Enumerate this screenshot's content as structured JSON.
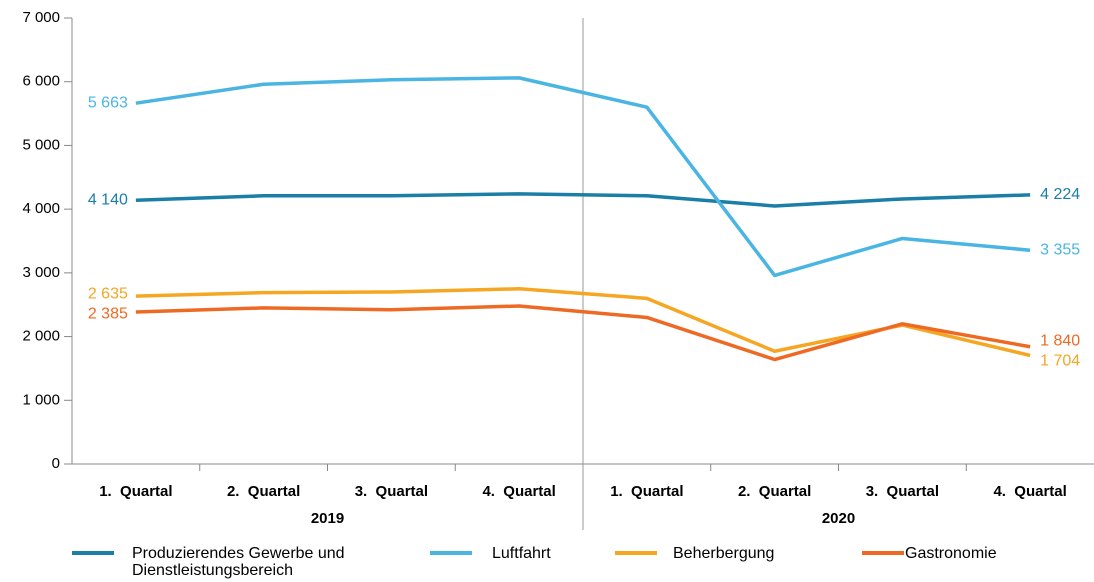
{
  "chart_data": {
    "type": "line",
    "categories": [
      "1.  Quartal",
      "2.  Quartal",
      "3.  Quartal",
      "4.  Quartal",
      "1.  Quartal",
      "2.  Quartal",
      "3.  Quartal",
      "4.  Quartal"
    ],
    "x_groups": [
      {
        "label": "2019",
        "count": 4
      },
      {
        "label": "2020",
        "count": 4
      }
    ],
    "series": [
      {
        "name": "Produzierendes Gewerbe und Dienstleistungsbereich",
        "color": "#1b7ea6",
        "values": [
          4140,
          4210,
          4210,
          4240,
          4210,
          4050,
          4160,
          4224
        ],
        "value_labels": [
          "4 140",
          null,
          null,
          null,
          null,
          null,
          null,
          "4 224"
        ]
      },
      {
        "name": "Luftfahrt",
        "color": "#4ab5e3",
        "values": [
          5663,
          5960,
          6030,
          6060,
          5600,
          2960,
          3540,
          3355
        ],
        "value_labels": [
          "5 663",
          null,
          null,
          null,
          null,
          null,
          null,
          "3 355"
        ]
      },
      {
        "name": "Beherbergung",
        "color": "#f5a623",
        "values": [
          2635,
          2690,
          2700,
          2750,
          2600,
          1770,
          2180,
          1704
        ],
        "value_labels": [
          "2 635",
          null,
          null,
          null,
          null,
          null,
          null,
          "1 704"
        ]
      },
      {
        "name": "Gastronomie",
        "color": "#ee6a24",
        "values": [
          2385,
          2450,
          2420,
          2480,
          2300,
          1640,
          2200,
          1840
        ],
        "value_labels": [
          "2 385",
          null,
          null,
          null,
          null,
          null,
          null,
          "1 840"
        ]
      }
    ],
    "ylim": [
      0,
      7000
    ],
    "yticks": [
      0,
      {
        "value": 1000,
        "label": "1 000"
      },
      {
        "value": 2000,
        "label": "2 000"
      },
      {
        "value": 3000,
        "label": "3 000"
      },
      {
        "value": 4000,
        "label": "4 000"
      },
      {
        "value": 5000,
        "label": "5 000"
      },
      {
        "value": 6000,
        "label": "6 000"
      },
      {
        "value": 7000,
        "label": "7 000"
      }
    ],
    "grid": false
  }
}
